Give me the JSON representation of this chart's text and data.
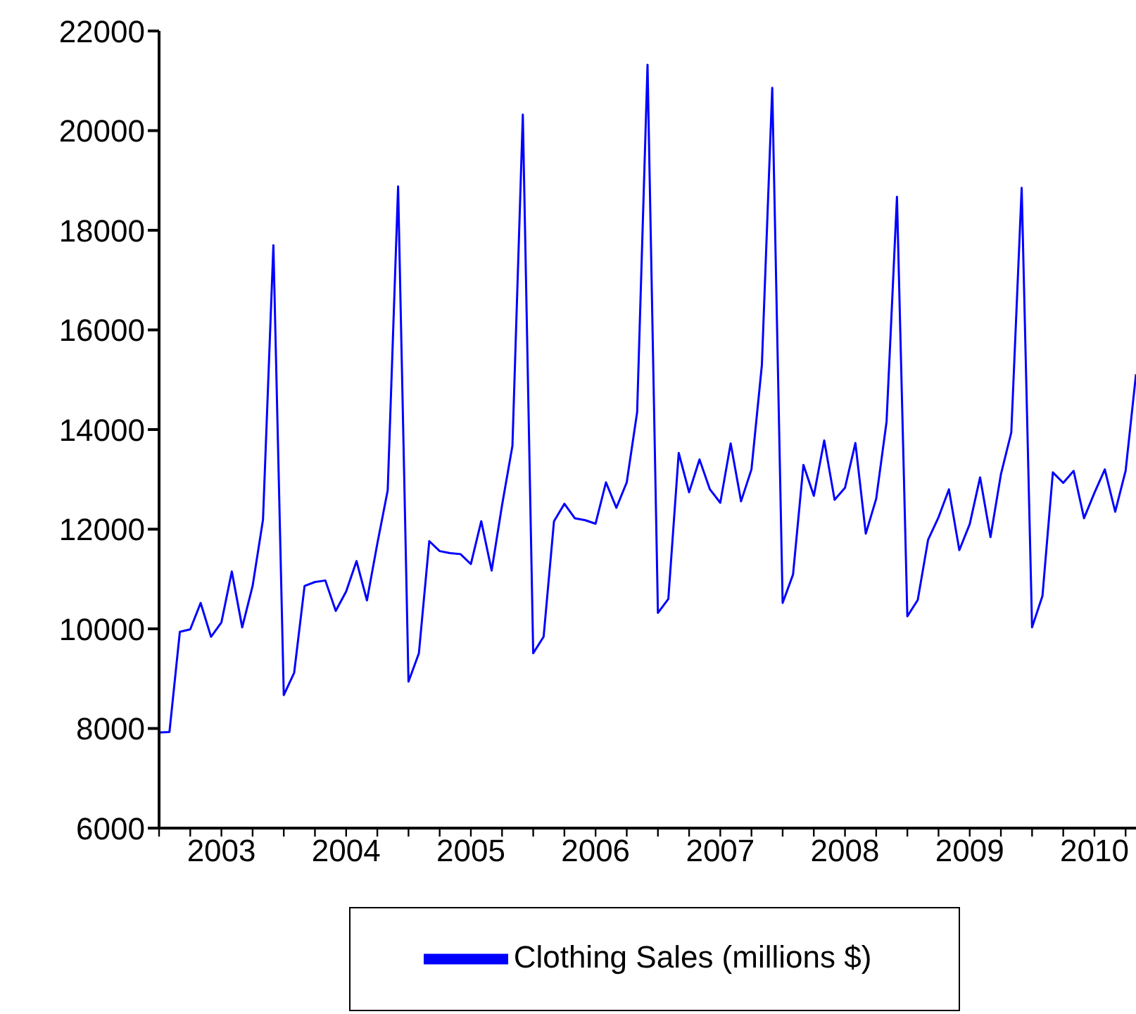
{
  "chart_data": {
    "type": "line",
    "x": [
      "2003-01",
      "2003-02",
      "2003-03",
      "2003-04",
      "2003-05",
      "2003-06",
      "2003-07",
      "2003-08",
      "2003-09",
      "2003-10",
      "2003-11",
      "2003-12",
      "2004-01",
      "2004-02",
      "2004-03",
      "2004-04",
      "2004-05",
      "2004-06",
      "2004-07",
      "2004-08",
      "2004-09",
      "2004-10",
      "2004-11",
      "2004-12",
      "2005-01",
      "2005-02",
      "2005-03",
      "2005-04",
      "2005-05",
      "2005-06",
      "2005-07",
      "2005-08",
      "2005-09",
      "2005-10",
      "2005-11",
      "2005-12",
      "2006-01",
      "2006-02",
      "2006-03",
      "2006-04",
      "2006-05",
      "2006-06",
      "2006-07",
      "2006-08",
      "2006-09",
      "2006-10",
      "2006-11",
      "2006-12",
      "2007-01",
      "2007-02",
      "2007-03",
      "2007-04",
      "2007-05",
      "2007-06",
      "2007-07",
      "2007-08",
      "2007-09",
      "2007-10",
      "2007-11",
      "2007-12",
      "2008-01",
      "2008-02",
      "2008-03",
      "2008-04",
      "2008-05",
      "2008-06",
      "2008-07",
      "2008-08",
      "2008-09",
      "2008-10",
      "2008-11",
      "2008-12",
      "2009-01",
      "2009-02",
      "2009-03",
      "2009-04",
      "2009-05",
      "2009-06",
      "2009-07",
      "2009-08",
      "2009-09",
      "2009-10",
      "2009-11",
      "2009-12",
      "2010-01",
      "2010-02",
      "2010-03",
      "2010-04",
      "2010-05",
      "2010-06",
      "2010-07",
      "2010-08",
      "2010-09",
      "2010-10",
      "2010-11"
    ],
    "series": [
      {
        "name": "Clothing Sales (millions $)",
        "color": "#0000ff",
        "values": [
          7920,
          7930,
          9940,
          9990,
          10520,
          9840,
          10130,
          11150,
          10030,
          10860,
          12190,
          17700,
          8670,
          9120,
          10860,
          10940,
          10970,
          10360,
          10750,
          11360,
          10570,
          11710,
          12780,
          18880,
          8940,
          9510,
          11760,
          11560,
          11520,
          11500,
          11300,
          12160,
          11170,
          12480,
          13670,
          20320,
          9510,
          9840,
          12160,
          12510,
          12220,
          12180,
          12110,
          12940,
          12430,
          12940,
          14350,
          21320,
          10320,
          10600,
          13530,
          12740,
          13400,
          12800,
          12530,
          13720,
          12560,
          13200,
          15290,
          20860,
          10520,
          11090,
          13290,
          12670,
          13780,
          12590,
          12830,
          13730,
          11910,
          12610,
          14160,
          18670,
          10250,
          10580,
          11790,
          12240,
          12800,
          11580,
          12100,
          13040,
          11840,
          13100,
          13940,
          18850,
          10030,
          10660,
          13140,
          12930,
          13170,
          12220,
          12730,
          13200,
          12350,
          13170,
          15110
        ]
      }
    ],
    "xlim": [
      "2003-01",
      "2010-11"
    ],
    "xticks": [
      {
        "value": "2003-01",
        "label": null
      },
      {
        "value": "2003-04",
        "label": null
      },
      {
        "value": "2003-07",
        "label": "2003"
      },
      {
        "value": "2003-10",
        "label": null
      },
      {
        "value": "2004-01",
        "label": null
      },
      {
        "value": "2004-04",
        "label": null
      },
      {
        "value": "2004-07",
        "label": "2004"
      },
      {
        "value": "2004-10",
        "label": null
      },
      {
        "value": "2005-01",
        "label": null
      },
      {
        "value": "2005-04",
        "label": null
      },
      {
        "value": "2005-07",
        "label": "2005"
      },
      {
        "value": "2005-10",
        "label": null
      },
      {
        "value": "2006-01",
        "label": null
      },
      {
        "value": "2006-04",
        "label": null
      },
      {
        "value": "2006-07",
        "label": "2006"
      },
      {
        "value": "2006-10",
        "label": null
      },
      {
        "value": "2007-01",
        "label": null
      },
      {
        "value": "2007-04",
        "label": null
      },
      {
        "value": "2007-07",
        "label": "2007"
      },
      {
        "value": "2007-10",
        "label": null
      },
      {
        "value": "2008-01",
        "label": null
      },
      {
        "value": "2008-04",
        "label": null
      },
      {
        "value": "2008-07",
        "label": "2008"
      },
      {
        "value": "2008-10",
        "label": null
      },
      {
        "value": "2009-01",
        "label": null
      },
      {
        "value": "2009-04",
        "label": null
      },
      {
        "value": "2009-07",
        "label": "2009"
      },
      {
        "value": "2009-10",
        "label": null
      },
      {
        "value": "2010-01",
        "label": null
      },
      {
        "value": "2010-04",
        "label": null
      },
      {
        "value": "2010-07",
        "label": "2010"
      },
      {
        "value": "2010-10",
        "label": null
      }
    ],
    "ylim": [
      6000,
      22000
    ],
    "yticks": [
      6000,
      8000,
      10000,
      12000,
      14000,
      16000,
      18000,
      20000,
      22000
    ],
    "grid": false,
    "legend": "bottom",
    "marker": "none",
    "line_style": "solid"
  }
}
